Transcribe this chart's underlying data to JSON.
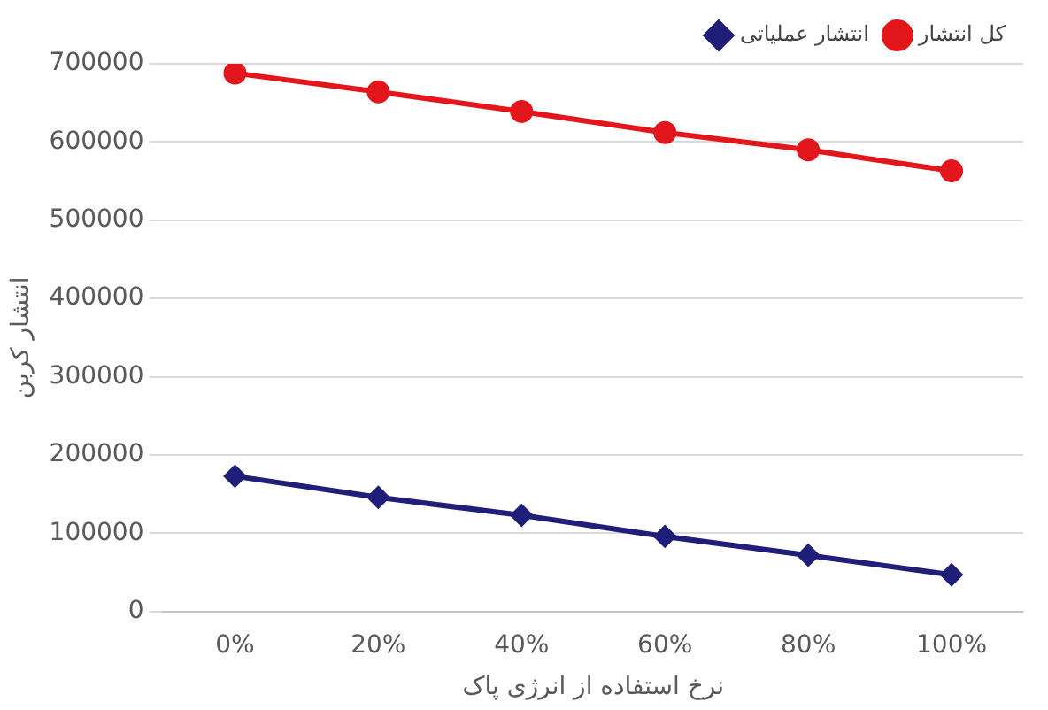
{
  "chart_data": {
    "type": "line",
    "xlabel": "نرخ استفاده از انرژی پاک",
    "ylabel": "انتشار کربن",
    "categories": [
      "0%",
      "20%",
      "40%",
      "60%",
      "80%",
      "100%"
    ],
    "series": [
      {
        "name": "انتشار عملیاتی",
        "color": "#1f1f7a",
        "marker": "diamond",
        "values": [
          173000,
          146000,
          123000,
          96000,
          72000,
          47000
        ]
      },
      {
        "name": "کل انتشار",
        "color": "#e3161b",
        "marker": "circle",
        "values": [
          688000,
          664000,
          639000,
          612000,
          590000,
          563000
        ]
      }
    ],
    "ylim": [
      0,
      700000
    ],
    "yticks": [
      0,
      100000,
      200000,
      300000,
      400000,
      500000,
      600000,
      700000
    ],
    "grid": "y",
    "legend": "top right"
  }
}
